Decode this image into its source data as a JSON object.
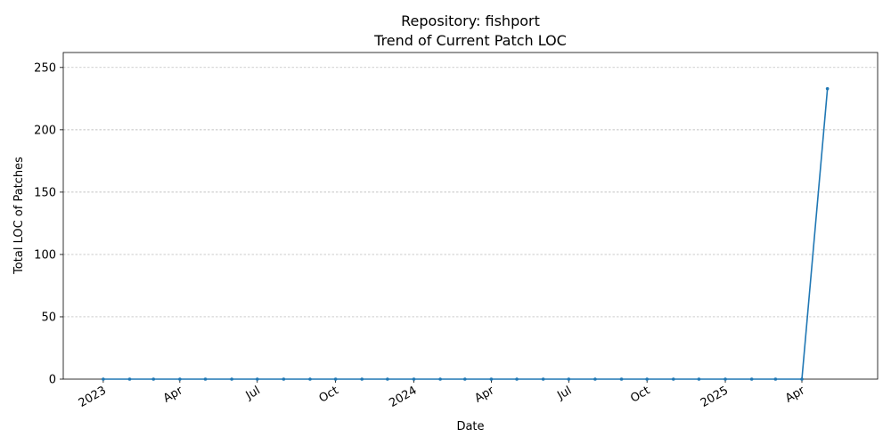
{
  "chart_data": {
    "type": "line",
    "title": "Repository: fishport",
    "subtitle": "Trend of Current Patch LOC",
    "xlabel": "Date",
    "ylabel": "Total LOC of Patches",
    "ylim": [
      0,
      262
    ],
    "xlim": [
      "2022-11-15",
      "2025-06-29"
    ],
    "yticks": [
      0,
      50,
      100,
      150,
      200,
      250
    ],
    "xticks": [
      {
        "date": "2023-01-01",
        "label": "2023"
      },
      {
        "date": "2023-04-01",
        "label": "Apr"
      },
      {
        "date": "2023-07-01",
        "label": "Jul"
      },
      {
        "date": "2023-10-01",
        "label": "Oct"
      },
      {
        "date": "2024-01-01",
        "label": "2024"
      },
      {
        "date": "2024-04-01",
        "label": "Apr"
      },
      {
        "date": "2024-07-01",
        "label": "Jul"
      },
      {
        "date": "2024-10-01",
        "label": "Oct"
      },
      {
        "date": "2025-01-01",
        "label": "2025"
      },
      {
        "date": "2025-04-01",
        "label": "Apr"
      }
    ],
    "grid": "y",
    "color": "#1f77b4",
    "x": [
      "2023-01-01",
      "2023-02-01",
      "2023-03-01",
      "2023-04-01",
      "2023-05-01",
      "2023-06-01",
      "2023-07-01",
      "2023-08-01",
      "2023-09-01",
      "2023-10-01",
      "2023-11-01",
      "2023-12-01",
      "2024-01-01",
      "2024-02-01",
      "2024-03-01",
      "2024-04-01",
      "2024-05-01",
      "2024-06-01",
      "2024-07-01",
      "2024-08-01",
      "2024-09-01",
      "2024-10-01",
      "2024-11-01",
      "2024-12-01",
      "2025-01-01",
      "2025-02-01",
      "2025-03-01",
      "2025-04-01",
      "2025-05-01"
    ],
    "values": [
      0,
      0,
      0,
      0,
      0,
      0,
      0,
      0,
      0,
      0,
      0,
      0,
      0,
      0,
      0,
      0,
      0,
      0,
      0,
      0,
      0,
      0,
      0,
      0,
      0,
      0,
      0,
      0,
      233
    ]
  }
}
